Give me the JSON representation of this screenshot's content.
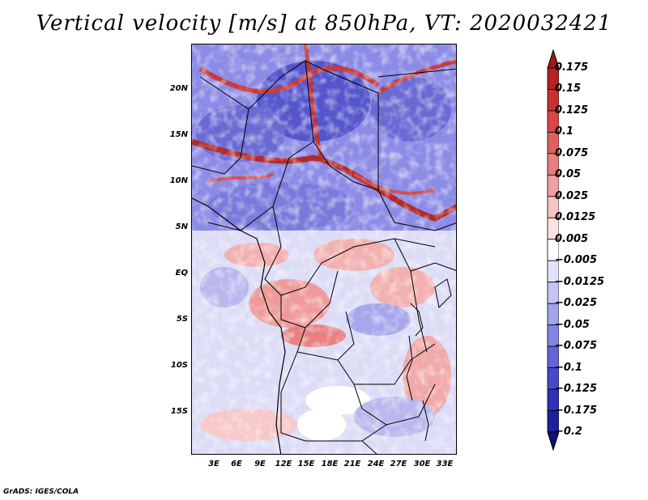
{
  "title": "Vertical velocity [m/s] at 850hPa, VT: 2020032421",
  "credit": "GrADS: IGES/COLA",
  "map": {
    "type": "contour-map",
    "variable": "Vertical velocity",
    "units": "m/s",
    "level": "850hPa",
    "valid_time": "2020032421",
    "lat_ticks": [
      "20N",
      "15N",
      "10N",
      "5N",
      "EQ",
      "5S",
      "10S",
      "15S"
    ],
    "lon_ticks": [
      "3E",
      "6E",
      "9E",
      "12E",
      "15E",
      "18E",
      "21E",
      "24E",
      "27E",
      "30E",
      "33E"
    ]
  },
  "colorbar": {
    "levels": [
      "0.175",
      "0.15",
      "0.125",
      "0.1",
      "0.075",
      "0.05",
      "0.025",
      "0.0125",
      "0.005",
      "−0.005",
      "−0.0125",
      "−0.025",
      "−0.05",
      "−0.075",
      "−0.1",
      "−0.125",
      "−0.175",
      "−0.2"
    ],
    "colors": [
      "#a01818",
      "#b82222",
      "#c83030",
      "#d84646",
      "#e06060",
      "#e87e7e",
      "#f0a0a0",
      "#f6c4c4",
      "#fbe2e2",
      "#ffffff",
      "#e2e2fb",
      "#c4c4f4",
      "#a4a4ec",
      "#8484e2",
      "#6464d6",
      "#4848c8",
      "#3030b4",
      "#20209c",
      "#101080"
    ]
  }
}
